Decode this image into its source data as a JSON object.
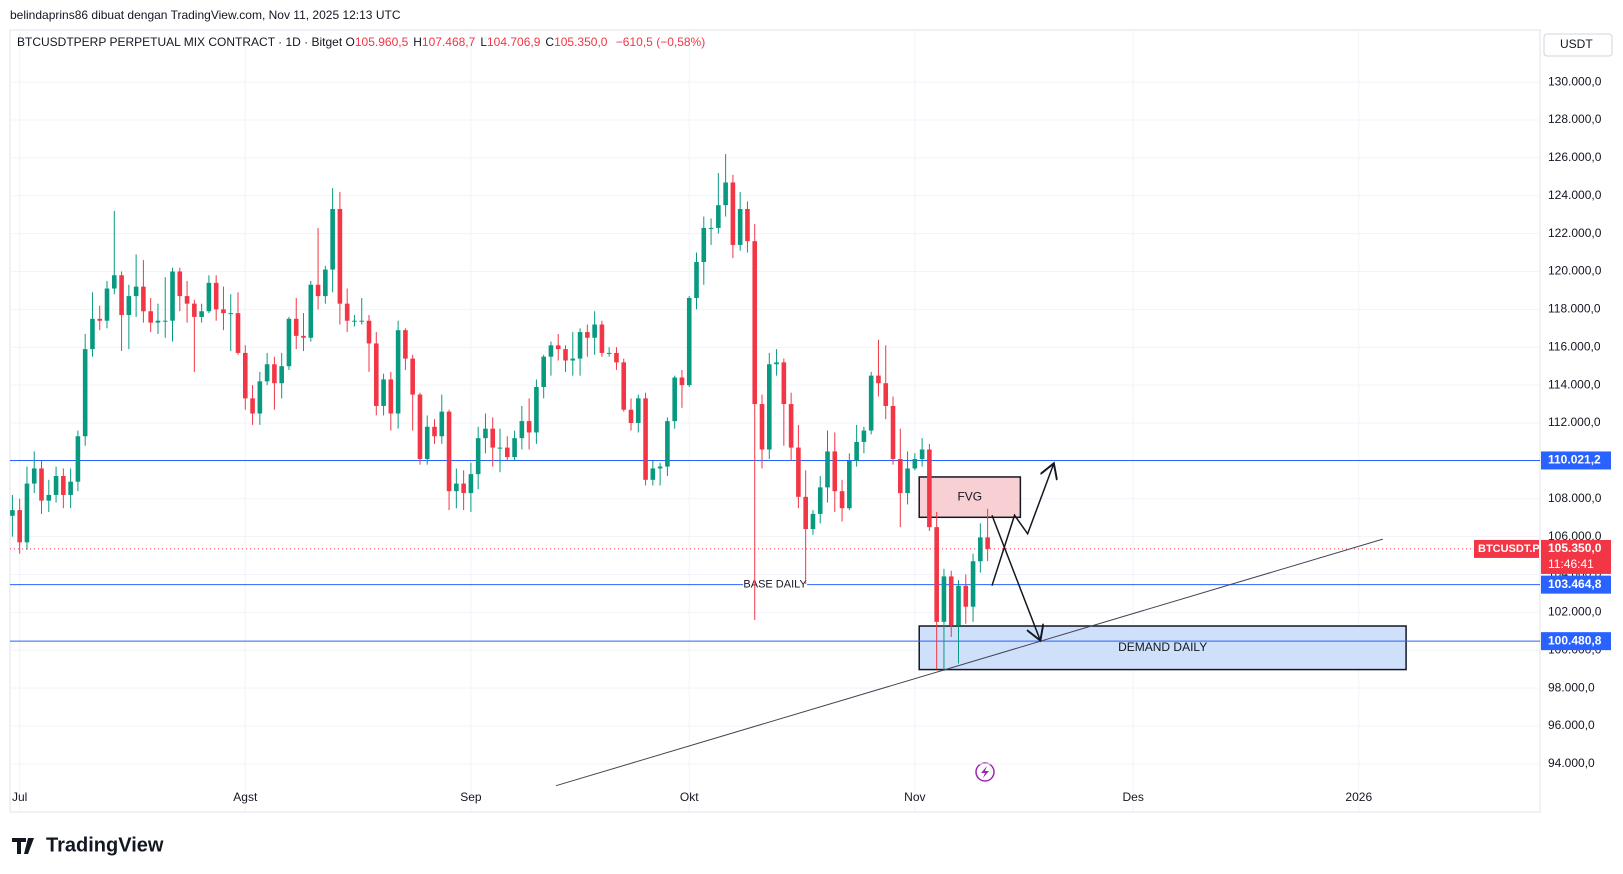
{
  "header": {
    "credit": "belindaprins86 dibuat dengan TradingView.com, Nov 11, 2025 12:13 UTC",
    "brand": "TradingView"
  },
  "chart_data": {
    "type": "candlestick",
    "title": "BTCUSDTPERP PERPETUAL MIX CONTRACT · 1D · Bitget",
    "ohlc_header": [
      {
        "key": "O",
        "value": 105960.5,
        "label": "105.960,5"
      },
      {
        "key": "H",
        "value": 107468.7,
        "label": "107.468,7"
      },
      {
        "key": "L",
        "value": 104706.9,
        "label": "104.706,9"
      },
      {
        "key": "C",
        "value": 105350.0,
        "label": "105.350,0"
      }
    ],
    "change": {
      "value": -610.5,
      "label": "−610,5"
    },
    "change_pct": {
      "value": -0.58,
      "label": "(−0,58%)"
    },
    "currency": "USDT",
    "up_color": "#089981",
    "down_color": "#f23645",
    "series": {
      "name": "BTCUSDT.P",
      "open": [
        107100,
        107400,
        105700,
        108800,
        109600,
        107900,
        108200,
        109200,
        108200,
        108900,
        111300,
        115900,
        117500,
        117400,
        119100,
        119800,
        117700,
        118700,
        119200,
        117900,
        117300,
        117400,
        117400,
        120000,
        118700,
        118300,
        117600,
        117900,
        119400,
        118000,
        117800,
        117800,
        115700,
        113300,
        112500,
        114200,
        115100,
        114100,
        115000,
        117500,
        116600,
        116500,
        119300,
        118700,
        120100,
        123300,
        118300,
        117400,
        117400,
        117400,
        116200,
        112900,
        114300,
        112500,
        116900,
        115400,
        113500,
        110100,
        111800,
        111300,
        112600,
        108400,
        108800,
        108300,
        109300,
        111200,
        111700,
        110700,
        110700,
        110200,
        111200,
        112100,
        111500,
        113900,
        115500,
        116100,
        115900,
        115300,
        115400,
        116800,
        116500,
        117200,
        115700,
        115700,
        115200,
        112700,
        112000,
        113300,
        109000,
        109600,
        109700,
        112100,
        114400,
        114000,
        118600,
        120500,
        122300,
        122300,
        123500,
        124700,
        121400,
        123300,
        121600,
        113000,
        110600,
        115100,
        115200,
        113000,
        110700,
        108100,
        106400,
        107200,
        108600,
        110500,
        108400,
        107500,
        110000,
        111000,
        111600,
        114500,
        114100,
        112900,
        110100,
        108300,
        109600,
        110100,
        110600,
        106500,
        101500,
        103900,
        101300,
        103400,
        102300,
        104700,
        105960.5
      ],
      "high": [
        108200,
        108000,
        109700,
        110500,
        110000,
        109000,
        109700,
        109600,
        109600,
        111600,
        116700,
        118900,
        118200,
        119500,
        123200,
        120000,
        119300,
        120900,
        120600,
        118600,
        118300,
        119700,
        120200,
        120200,
        119500,
        118500,
        118300,
        119800,
        119800,
        119200,
        118800,
        118900,
        116100,
        114000,
        114700,
        115700,
        115500,
        115700,
        117600,
        118600,
        117800,
        119500,
        122300,
        120300,
        124400,
        124200,
        119100,
        117700,
        118600,
        117700,
        116800,
        114600,
        114700,
        117400,
        117000,
        115600,
        113600,
        112400,
        112200,
        113500,
        112700,
        109600,
        109500,
        109900,
        111800,
        112500,
        112300,
        111700,
        111300,
        111600,
        112900,
        113300,
        114300,
        115600,
        116300,
        116700,
        116100,
        116800,
        117000,
        117200,
        117900,
        117400,
        116000,
        116000,
        115400,
        113300,
        113500,
        113600,
        110000,
        109900,
        112300,
        114500,
        114800,
        118700,
        121000,
        122900,
        122800,
        125200,
        126200,
        125100,
        124200,
        123700,
        122500,
        113500,
        115700,
        115900,
        115400,
        113600,
        111900,
        109500,
        107400,
        109200,
        111600,
        111500,
        109000,
        110400,
        111900,
        111800,
        114700,
        116400,
        116100,
        113400,
        111700,
        110500,
        110400,
        111200,
        110900,
        107300,
        104300,
        104200,
        103700,
        104000,
        105100,
        106700,
        107468.7
      ],
      "low": [
        106000,
        105100,
        105300,
        108300,
        107200,
        107300,
        107800,
        107500,
        107500,
        108400,
        110800,
        115500,
        116900,
        117000,
        118800,
        115800,
        115900,
        117600,
        117300,
        116800,
        116700,
        116500,
        116300,
        117900,
        117300,
        114700,
        117300,
        117800,
        117400,
        116900,
        115800,
        115600,
        112700,
        111900,
        111900,
        114000,
        112700,
        113300,
        114800,
        115900,
        115800,
        116300,
        118000,
        118300,
        118900,
        117200,
        116800,
        117100,
        117200,
        114700,
        112400,
        112400,
        111600,
        111700,
        114800,
        111600,
        109800,
        109800,
        110900,
        110900,
        107400,
        107500,
        107400,
        107300,
        108500,
        110400,
        109700,
        109400,
        110000,
        110000,
        110600,
        110600,
        110900,
        113300,
        114500,
        115300,
        114700,
        114500,
        114500,
        115500,
        115600,
        115500,
        115500,
        114800,
        112600,
        111600,
        111500,
        108700,
        108700,
        108700,
        109200,
        111700,
        112800,
        113900,
        118000,
        119300,
        121400,
        122000,
        122900,
        120700,
        121100,
        121000,
        101600,
        109600,
        110100,
        114500,
        110800,
        110000,
        107500,
        103500,
        106100,
        106700,
        107800,
        107300,
        106800,
        107400,
        109700,
        110400,
        111400,
        113400,
        112200,
        109800,
        106500,
        107700,
        109500,
        109700,
        106300,
        99000,
        98900,
        100700,
        99300,
        101400,
        101500,
        104100,
        104706.9
      ],
      "close": [
        107400,
        105700,
        108800,
        109600,
        107900,
        108200,
        109200,
        108200,
        108900,
        111300,
        115900,
        117500,
        117400,
        119100,
        119800,
        117700,
        118700,
        119200,
        117900,
        117300,
        117400,
        117400,
        120000,
        118700,
        118300,
        117600,
        117900,
        119400,
        118000,
        117800,
        117800,
        115700,
        113300,
        112500,
        114200,
        115100,
        114100,
        115000,
        117500,
        116600,
        116500,
        119300,
        118700,
        120100,
        123300,
        118300,
        117400,
        117400,
        117400,
        116200,
        112900,
        114300,
        112500,
        116900,
        115400,
        113500,
        110100,
        111800,
        111300,
        112600,
        108400,
        108800,
        108300,
        109300,
        111200,
        111700,
        110700,
        110700,
        110200,
        111200,
        112100,
        111500,
        113900,
        115500,
        116100,
        115900,
        115300,
        115400,
        116800,
        116500,
        117200,
        115700,
        115700,
        115200,
        112700,
        112000,
        113300,
        109000,
        109600,
        109700,
        112100,
        114400,
        114000,
        118600,
        120500,
        122300,
        122300,
        123500,
        124700,
        121400,
        123300,
        121600,
        113000,
        110600,
        115100,
        115200,
        113000,
        110700,
        108100,
        106400,
        107200,
        108600,
        110500,
        108400,
        107500,
        110000,
        111000,
        111600,
        114500,
        114100,
        112900,
        110100,
        108300,
        109600,
        110100,
        110600,
        106500,
        101500,
        103900,
        101300,
        103400,
        102300,
        104700,
        105960,
        105350.0
      ]
    },
    "last_price": {
      "value": 105350.0,
      "label": "105.350,0",
      "countdown": "11:46:41"
    },
    "xlim": [
      -0.33,
      209.9
    ],
    "ylim": [
      91460,
      132750
    ],
    "xticks": [
      {
        "value": 1,
        "label": "Jul"
      },
      {
        "value": 32,
        "label": "Agst"
      },
      {
        "value": 63,
        "label": "Sep"
      },
      {
        "value": 93,
        "label": "Okt"
      },
      {
        "value": 124,
        "label": "Nov"
      },
      {
        "value": 154,
        "label": "Des"
      },
      {
        "value": 185,
        "label": "2026"
      }
    ],
    "yticks": [
      {
        "value": 94000,
        "label": "94.000,0"
      },
      {
        "value": 96000,
        "label": "96.000,0"
      },
      {
        "value": 98000,
        "label": "98.000,0"
      },
      {
        "value": 100000,
        "label": "100.000,0"
      },
      {
        "value": 102000,
        "label": "102.000,0"
      },
      {
        "value": 104000,
        "label": "104.000,0"
      },
      {
        "value": 106000,
        "label": "106.000,0"
      },
      {
        "value": 108000,
        "label": "108.000,0"
      },
      {
        "value": 110000,
        "label": "110.000,0"
      },
      {
        "value": 112000,
        "label": "112.000,0"
      },
      {
        "value": 114000,
        "label": "114.000,0"
      },
      {
        "value": 116000,
        "label": "116.000,0"
      },
      {
        "value": 118000,
        "label": "118.000,0"
      },
      {
        "value": 120000,
        "label": "120.000,0"
      },
      {
        "value": 122000,
        "label": "122.000,0"
      },
      {
        "value": 124000,
        "label": "124.000,0"
      },
      {
        "value": 126000,
        "label": "126.000,0"
      },
      {
        "value": 128000,
        "label": "128.000,0"
      },
      {
        "value": 130000,
        "label": "130.000,0"
      }
    ],
    "grid": true,
    "level_color": "#2962ff",
    "levels": [
      {
        "value": 110021.2,
        "label": "110.021,2"
      },
      {
        "value": 103464.8,
        "label": "103.464,8",
        "note": "BASE DAILY",
        "note_x": 104.8
      },
      {
        "value": 100480.8,
        "label": "100.480,8"
      }
    ],
    "zones": [
      {
        "label": "FVG",
        "x": [
          124.6,
          138.5
        ],
        "y": [
          107020,
          109150
        ],
        "color": "#f8d0d4"
      },
      {
        "label": "DEMAND DAILY",
        "x": [
          124.6,
          191.5
        ],
        "y": [
          98980,
          101280
        ],
        "color": "#cfe0fb"
      }
    ],
    "trendline": {
      "x": [
        74.7,
        188.3
      ],
      "y": [
        92850,
        105870
      ]
    },
    "arrows": [
      {
        "x": [
          134.6,
          137.7,
          139.5,
          143.1
        ],
        "y": [
          103410,
          107130,
          106150,
          109870
        ]
      },
      {
        "x": [
          134.6,
          141.25
        ],
        "y": [
          107130,
          100510
        ]
      }
    ]
  }
}
